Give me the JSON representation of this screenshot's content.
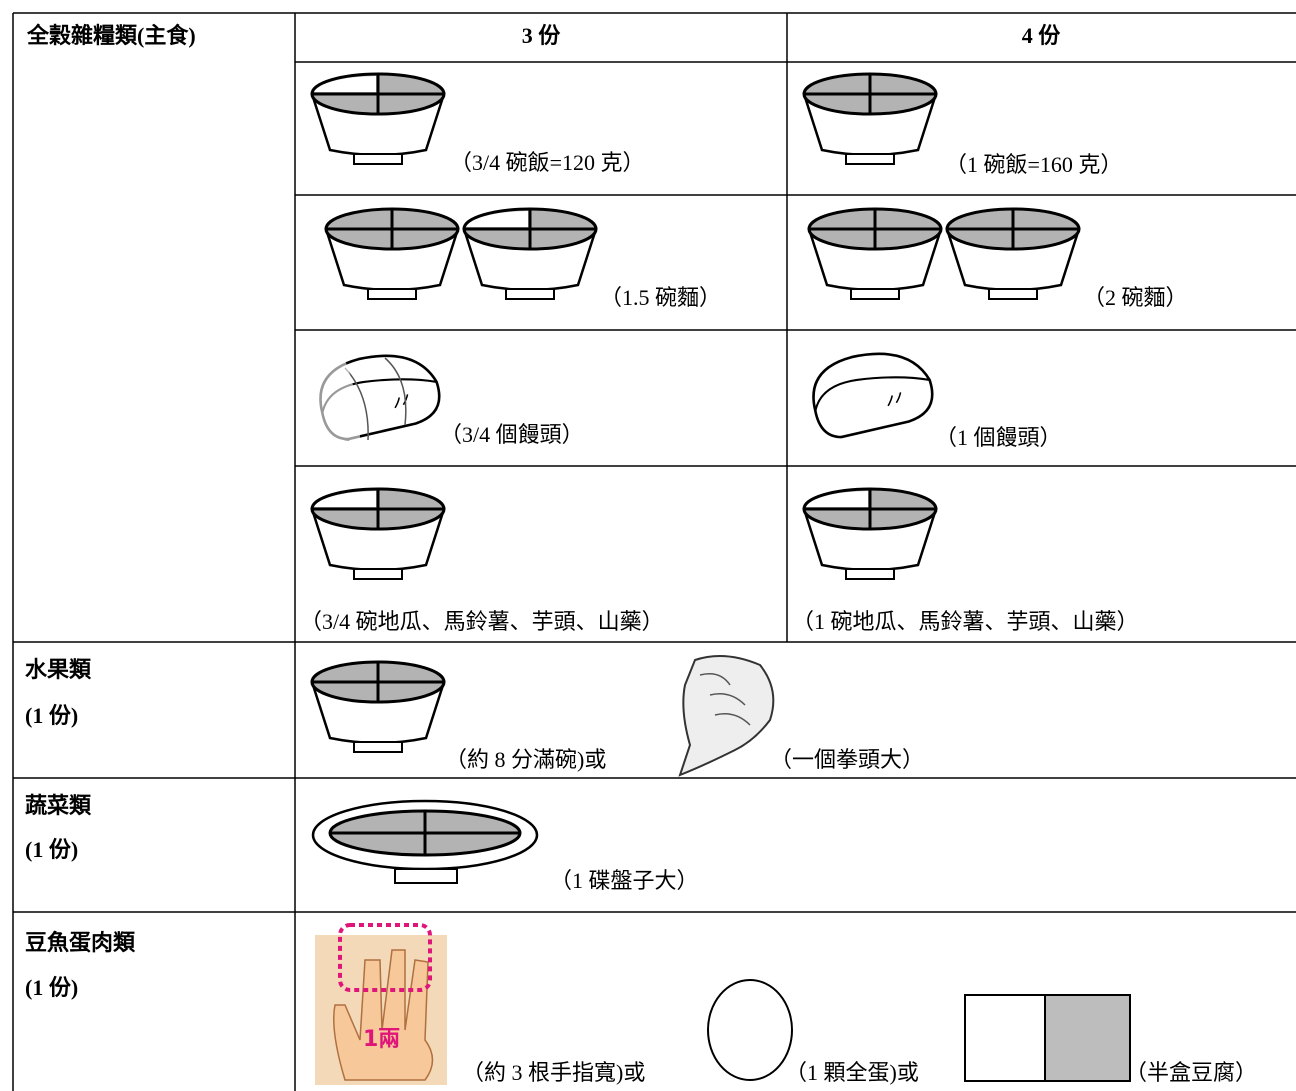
{
  "table": {
    "header": [
      "全穀雜糧類(主食)",
      "3 份",
      "4 份"
    ],
    "grains": [
      [
        "（3/4 碗飯=120 克）",
        "（1 碗飯=160 克）"
      ],
      [
        "（1.5 碗麵）",
        "（2 碗麵）"
      ],
      [
        "（3/4 個饅頭）",
        "（1 個饅頭）"
      ],
      [
        "（3/4 碗地瓜、馬鈴薯、芋頭、山藥）",
        "（1 碗地瓜、馬鈴薯、芋頭、山藥）"
      ]
    ],
    "fruit": {
      "label": "水果類",
      "portion": "(1 份)",
      "items": [
        "（約 8 分滿碗)或",
        "（一個拳頭大）"
      ]
    },
    "vegetable": {
      "label": "蔬菜類",
      "portion": "(1 份)",
      "items": [
        "（1 碟盤子大）"
      ]
    },
    "protein": {
      "label": "豆魚蛋肉類",
      "portion": "(1 份)",
      "hand_label": "1兩",
      "items": [
        "（約 3 根手指寬)或",
        "（1 顆全蛋)或",
        "（半盒豆腐）"
      ]
    }
  }
}
